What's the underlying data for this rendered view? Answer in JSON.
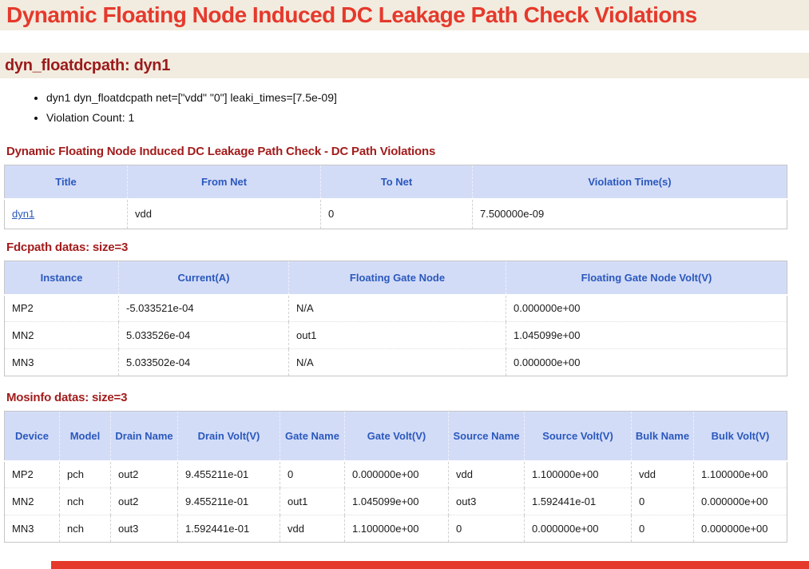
{
  "page": {
    "title": "Dynamic Floating Node Induced DC Leakage Path Check Violations",
    "section_title": "dyn_floatdcpath: dyn1",
    "bullets": [
      "dyn1 dyn_floatdcpath net=[\"vdd\" \"0\"] leaki_times=[7.5e-09]",
      "Violation Count: 1"
    ]
  },
  "colors": {
    "title_red": "#e5392c",
    "section_heading_maroon": "#9b1b1b",
    "table_caption_red": "#a31c1c",
    "band_beige": "#f1ecdf",
    "table_header_bg": "#d3dcf7",
    "table_header_text": "#2a58bd",
    "link_blue": "#2a58bd",
    "bottom_bar_red": "#e5392c"
  },
  "tables": [
    {
      "caption": "Dynamic Floating Node Induced DC Leakage Path Check - DC Path Violations",
      "columns": [
        "Title",
        "From Net",
        "To Net",
        "Violation Time(s)"
      ],
      "rows": [
        [
          {
            "text": "dyn1",
            "link": true
          },
          "vdd",
          "0",
          "7.500000e-09"
        ]
      ]
    },
    {
      "caption": "Fdcpath datas: size=3",
      "columns": [
        "Instance",
        "Current(A)",
        "Floating Gate Node",
        "Floating Gate Node Volt(V)"
      ],
      "rows": [
        [
          "MP2",
          "-5.033521e-04",
          "N/A",
          "0.000000e+00"
        ],
        [
          "MN2",
          "5.033526e-04",
          "out1",
          "1.045099e+00"
        ],
        [
          "MN3",
          "5.033502e-04",
          "N/A",
          "0.000000e+00"
        ]
      ]
    },
    {
      "caption": "Mosinfo datas: size=3",
      "columns": [
        "Device",
        "Model",
        "Drain Name",
        "Drain Volt(V)",
        "Gate Name",
        "Gate Volt(V)",
        "Source Name",
        "Source Volt(V)",
        "Bulk Name",
        "Bulk Volt(V)"
      ],
      "rows": [
        [
          "MP2",
          "pch",
          "out2",
          "9.455211e-01",
          "0",
          "0.000000e+00",
          "vdd",
          "1.100000e+00",
          "vdd",
          "1.100000e+00"
        ],
        [
          "MN2",
          "nch",
          "out2",
          "9.455211e-01",
          "out1",
          "1.045099e+00",
          "out3",
          "1.592441e-01",
          "0",
          "0.000000e+00"
        ],
        [
          "MN3",
          "nch",
          "out3",
          "1.592441e-01",
          "vdd",
          "1.100000e+00",
          "0",
          "0.000000e+00",
          "0",
          "0.000000e+00"
        ]
      ]
    }
  ]
}
